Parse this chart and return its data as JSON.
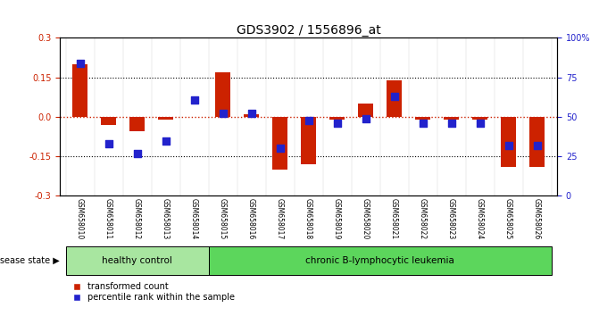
{
  "title": "GDS3902 / 1556896_at",
  "samples": [
    "GSM658010",
    "GSM658011",
    "GSM658012",
    "GSM658013",
    "GSM658014",
    "GSM658015",
    "GSM658016",
    "GSM658017",
    "GSM658018",
    "GSM658019",
    "GSM658020",
    "GSM658021",
    "GSM658022",
    "GSM658023",
    "GSM658024",
    "GSM658025",
    "GSM658026"
  ],
  "red_bars": [
    0.2,
    -0.03,
    -0.055,
    -0.01,
    0.0,
    0.17,
    0.01,
    -0.2,
    -0.18,
    -0.01,
    0.05,
    0.14,
    -0.01,
    -0.01,
    -0.01,
    -0.19,
    -0.19
  ],
  "blue_pct": [
    84,
    33,
    27,
    35,
    61,
    52,
    52,
    30,
    48,
    46,
    49,
    63,
    46,
    46,
    46,
    32,
    32
  ],
  "group_labels": [
    "healthy control",
    "chronic B-lymphocytic leukemia"
  ],
  "hc_count": 5,
  "group_colors": [
    "#a8e6a0",
    "#5cd65c"
  ],
  "disease_label": "disease state",
  "ylim": [
    -0.3,
    0.3
  ],
  "yticks_left": [
    -0.3,
    -0.15,
    0.0,
    0.15,
    0.3
  ],
  "yticks_right": [
    0,
    25,
    50,
    75,
    100
  ],
  "hlines_black": [
    -0.15,
    0.15
  ],
  "hline_red": 0.0,
  "red_color": "#CC2200",
  "blue_color": "#2222CC",
  "bar_width": 0.55,
  "dot_size": 30
}
